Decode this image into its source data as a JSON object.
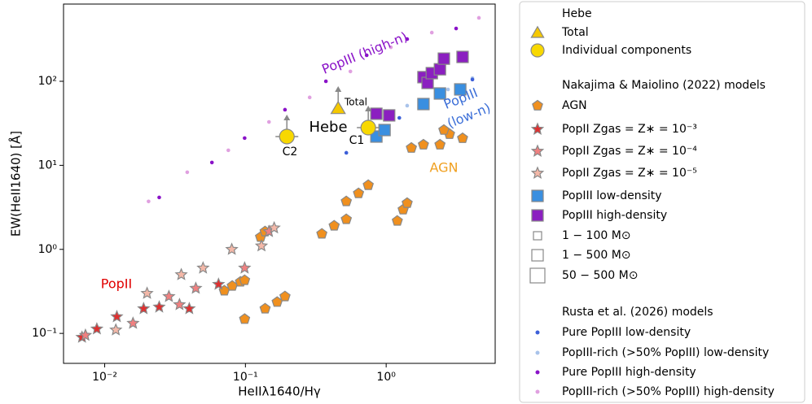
{
  "chart_data": {
    "type": "scatter",
    "x_label": "HeIIλ1640/Hγ",
    "y_label": "EW(HeII1640) [Å]",
    "log_x": true,
    "log_y": true,
    "xlim": [
      0.0051,
      5.95
    ],
    "ylim": [
      0.044,
      830
    ],
    "xticks": [
      {
        "value": 0.01,
        "label": "10⁻²"
      },
      {
        "value": 0.1,
        "label": "10⁻¹"
      },
      {
        "value": 1,
        "label": "10⁰"
      }
    ],
    "yticks": [
      {
        "value": 0.1,
        "label": "10⁻¹"
      },
      {
        "value": 1,
        "label": "10⁰"
      },
      {
        "value": 10,
        "label": "10¹"
      },
      {
        "value": 100,
        "label": "10²"
      }
    ],
    "legend_groups": [
      "Hebe",
      "Nakajima & Maiolino (2022) models",
      "Rusta et al. (2026) models"
    ],
    "size_legend": [
      "1 − 100 M⊙",
      "1 − 500 M⊙",
      "50 − 500 M⊙"
    ],
    "series": [
      {
        "name": "Total",
        "color": "#f5c800",
        "marker": "triangle",
        "x": [
          0.456
        ],
        "values": [
          48.0
        ]
      },
      {
        "name": "Individual components",
        "color": "#f8d800",
        "marker": "circle",
        "x": [
          0.746,
          0.197
        ],
        "values": [
          28.1,
          22.0
        ]
      },
      {
        "name": "AGN",
        "color": "#f0901e",
        "marker": "pentagon",
        "x": [
          0.0987,
          0.138,
          0.168,
          0.191,
          0.0708,
          0.0806,
          0.0922,
          0.0987,
          0.128,
          0.138,
          0.349,
          0.427,
          0.521,
          0.521,
          0.636,
          0.746,
          1.2,
          1.32,
          1.41,
          1.51,
          1.84,
          2.41,
          2.82,
          3.49,
          2.57
        ],
        "values": [
          0.148,
          0.197,
          0.236,
          0.275,
          0.322,
          0.367,
          0.411,
          0.429,
          1.4,
          1.63,
          1.53,
          1.91,
          2.28,
          3.72,
          4.64,
          5.8,
          2.18,
          2.97,
          3.55,
          16.1,
          17.6,
          17.6,
          23.5,
          21.0,
          26.3
        ]
      },
      {
        "name": "PopII Zgas = Z∗ = 10⁻³",
        "color": "#e03030",
        "marker": "star",
        "x": [
          0.0069,
          0.0088,
          0.0122,
          0.0189,
          0.0244,
          0.0399,
          0.0644
        ],
        "values": [
          0.09,
          0.113,
          0.158,
          0.197,
          0.206,
          0.197,
          0.384
        ]
      },
      {
        "name": "PopII Zgas = Z∗ = 10⁻⁴",
        "color": "#f08080",
        "marker": "star",
        "x": [
          0.0073,
          0.0159,
          0.0286,
          0.034,
          0.0444,
          0.0987,
          0.147
        ],
        "values": [
          0.095,
          0.132,
          0.275,
          0.22,
          0.344,
          0.6,
          1.63
        ]
      },
      {
        "name": "PopII Zgas = Z∗ = 10⁻⁵",
        "color": "#f4b8a8",
        "marker": "star",
        "x": [
          0.012,
          0.02,
          0.035,
          0.05,
          0.08,
          0.13,
          0.16
        ],
        "values": [
          0.11,
          0.3,
          0.5,
          0.6,
          1.0,
          1.1,
          1.8
        ]
      },
      {
        "name": "PopIII low-density",
        "color": "#3a8fe0",
        "marker": "square",
        "x": [
          0.852,
          0.974,
          1.84,
          2.41,
          3.36
        ],
        "values": [
          22.0,
          26.3,
          53.6,
          71.6,
          80.1
        ]
      },
      {
        "name": "PopIII high-density",
        "color": "#8b1fc0",
        "marker": "square",
        "x": [
          0.852,
          1.05,
          1.84,
          1.97,
          2.11,
          2.41,
          2.57,
          3.49
        ],
        "values": [
          41.1,
          39.3,
          112,
          95.6,
          125,
          139,
          186,
          195
        ]
      },
      {
        "name": "Pure PopIII low-density",
        "color": "#3c5fd8",
        "marker": "dot",
        "x": [
          0.521,
          1.24,
          2.41,
          4.1
        ],
        "values": [
          14.1,
          36.7,
          67.3,
          105
        ]
      },
      {
        "name": "PopIII-rich (>50% PopIII) low-density",
        "color": "#a9c3ea",
        "marker": "dot",
        "x": [
          1.41,
          2.75,
          4.1
        ],
        "values": [
          51.3,
          80,
          109
        ]
      },
      {
        "name": "Pure PopIII  high-density",
        "color": "#8a12c8",
        "marker": "dot",
        "x": [
          0.0244,
          0.0578,
          0.0987,
          0.191,
          0.373,
          0.727,
          1.41,
          3.14
        ],
        "values": [
          4.15,
          10.8,
          21.1,
          45.9,
          100,
          204,
          318,
          425
        ]
      },
      {
        "name": "PopIII-rich (>50% PopIII) high-density",
        "color": "#e0a0e0",
        "marker": "dot",
        "x": [
          0.0205,
          0.0386,
          0.0756,
          0.147,
          0.286,
          0.557,
          1.08,
          2.11,
          4.56
        ],
        "values": [
          3.72,
          8.27,
          15.1,
          32.8,
          64.3,
          131,
          254,
          380,
          569
        ]
      }
    ],
    "annotations": [
      {
        "text": "PopIII (high-n)",
        "color": "#8a12c8"
      },
      {
        "text": "PopIII",
        "color": "#3c6fd8"
      },
      {
        "text": "(low-n)",
        "color": "#3c6fd8"
      },
      {
        "text": "AGN",
        "color": "#f0a020"
      },
      {
        "text": "PopII",
        "color": "#e00000"
      },
      {
        "text": "Hebe",
        "color": "#000000"
      },
      {
        "text": "Total",
        "color": "#000000"
      },
      {
        "text": "C1",
        "color": "#000000"
      },
      {
        "text": "C2",
        "color": "#000000"
      }
    ]
  }
}
